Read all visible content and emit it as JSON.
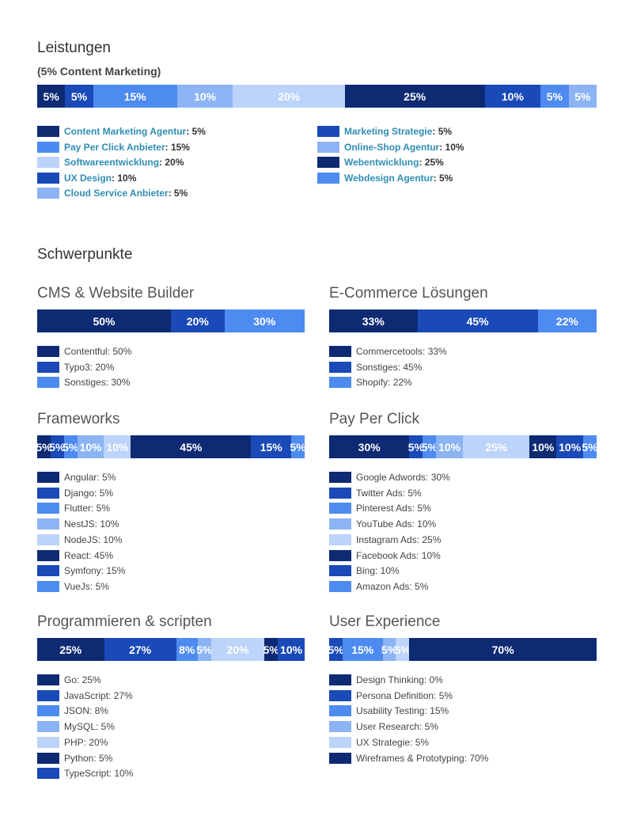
{
  "leistungen": {
    "heading": "Leistungen",
    "subheading": "(5% Content Marketing)",
    "chart_data": {
      "type": "bar",
      "stacked": true,
      "orientation": "horizontal",
      "values": [
        5,
        5,
        15,
        10,
        20,
        25,
        10,
        5,
        5
      ],
      "labels": [
        "5%",
        "5%",
        "15%",
        "10%",
        "20%",
        "25%",
        "10%",
        "5%",
        "5%"
      ],
      "colors": [
        "#0d2a73",
        "#1a49b8",
        "#4d8bf0",
        "#8cb4f4",
        "#bcd3fa",
        "#0d2a73",
        "#1a49b8",
        "#4d8bf0",
        "#8cb4f4"
      ],
      "legend": [
        {
          "name": "Content Marketing Agentur",
          "value": ": 5%",
          "color": "#0d2a73"
        },
        {
          "name": "Pay Per Click Anbieter",
          "value": ": 15%",
          "color": "#4d8bf0"
        },
        {
          "name": "Softwareentwicklung",
          "value": ": 20%",
          "color": "#bcd3fa"
        },
        {
          "name": "UX Design",
          "value": ": 10%",
          "color": "#1a49b8"
        },
        {
          "name": "Cloud Service Anbieter",
          "value": ": 5%",
          "color": "#8cb4f4"
        },
        {
          "name": "Marketing Strategie",
          "value": ": 5%",
          "color": "#1a49b8"
        },
        {
          "name": "Online-Shop Agentur",
          "value": ": 10%",
          "color": "#8cb4f4"
        },
        {
          "name": "Webentwicklung",
          "value": ": 25%",
          "color": "#0d2a73"
        },
        {
          "name": "Webdesign Agentur",
          "value": ": 5%",
          "color": "#4d8bf0"
        }
      ]
    }
  },
  "schwerpunkte": {
    "heading": "Schwerpunkte",
    "charts": [
      {
        "title": "CMS & Website Builder",
        "chart_data": {
          "type": "bar",
          "stacked": true,
          "values": [
            50,
            20,
            30
          ],
          "labels": [
            "50%",
            "20%",
            "30%"
          ],
          "colors": [
            "#0d2a73",
            "#1a49b8",
            "#4d8bf0"
          ],
          "legend": [
            "Contentful: 50%",
            "Typo3: 20%",
            "Sonstiges: 30%"
          ]
        }
      },
      {
        "title": "E-Commerce Lösungen",
        "chart_data": {
          "type": "bar",
          "stacked": true,
          "values": [
            33,
            45,
            22
          ],
          "labels": [
            "33%",
            "45%",
            "22%"
          ],
          "colors": [
            "#0d2a73",
            "#1a49b8",
            "#4d8bf0"
          ],
          "legend": [
            "Commercetools: 33%",
            "Sonstiges: 45%",
            "Shopify: 22%"
          ]
        }
      },
      {
        "title": "Frameworks",
        "chart_data": {
          "type": "bar",
          "stacked": true,
          "values": [
            5,
            5,
            5,
            10,
            10,
            45,
            15,
            5
          ],
          "labels": [
            "5%",
            "5%",
            "5%",
            "10%",
            "10%",
            "45%",
            "15%",
            "5%"
          ],
          "colors": [
            "#0d2a73",
            "#1a49b8",
            "#4d8bf0",
            "#8cb4f4",
            "#bcd3fa",
            "#0d2a73",
            "#1a49b8",
            "#4d8bf0"
          ],
          "legend": [
            "Angular: 5%",
            "Django: 5%",
            "Flutter: 5%",
            "NestJS: 10%",
            "NodeJS: 10%",
            "React: 45%",
            "Symfony: 15%",
            "VueJs: 5%"
          ]
        }
      },
      {
        "title": "Pay Per Click",
        "chart_data": {
          "type": "bar",
          "stacked": true,
          "values": [
            30,
            5,
            5,
            10,
            25,
            10,
            10,
            5
          ],
          "labels": [
            "30%",
            "5%",
            "5%",
            "10%",
            "25%",
            "10%",
            "10%",
            "5%"
          ],
          "colors": [
            "#0d2a73",
            "#1a49b8",
            "#4d8bf0",
            "#8cb4f4",
            "#bcd3fa",
            "#0d2a73",
            "#1a49b8",
            "#4d8bf0"
          ],
          "legend": [
            "Google Adwords: 30%",
            "Twitter Ads: 5%",
            "Pinterest Ads: 5%",
            "YouTube Ads: 10%",
            "Instagram Ads: 25%",
            "Facebook Ads: 10%",
            "Bing: 10%",
            "Amazon Ads: 5%"
          ]
        }
      },
      {
        "title": "Programmieren & scripten",
        "chart_data": {
          "type": "bar",
          "stacked": true,
          "values": [
            25,
            27,
            8,
            5,
            20,
            5,
            10
          ],
          "labels": [
            "25%",
            "27%",
            "8%",
            "5%",
            "20%",
            "5%",
            "10%"
          ],
          "colors": [
            "#0d2a73",
            "#1a49b8",
            "#4d8bf0",
            "#8cb4f4",
            "#bcd3fa",
            "#0d2a73",
            "#1a49b8"
          ],
          "legend": [
            "Go: 25%",
            "JavaScript: 27%",
            "JSON: 8%",
            "MySQL: 5%",
            "PHP: 20%",
            "Python: 5%",
            "TypeScript: 10%"
          ]
        }
      },
      {
        "title": "User Experience",
        "chart_data": {
          "type": "bar",
          "stacked": true,
          "values": [
            0,
            5,
            15,
            5,
            5,
            70
          ],
          "labels": [
            "",
            "5%",
            "15%",
            "5%",
            "5%",
            "70%"
          ],
          "colors": [
            "#0d2a73",
            "#1a49b8",
            "#4d8bf0",
            "#8cb4f4",
            "#bcd3fa",
            "#0d2a73"
          ],
          "legend": [
            "Design Thinking: 0%",
            "Persona Definition: 5%",
            "Usability Testing: 15%",
            "User Research: 5%",
            "UX Strategie: 5%",
            "Wireframes & Prototyping: 70%"
          ]
        }
      }
    ]
  }
}
